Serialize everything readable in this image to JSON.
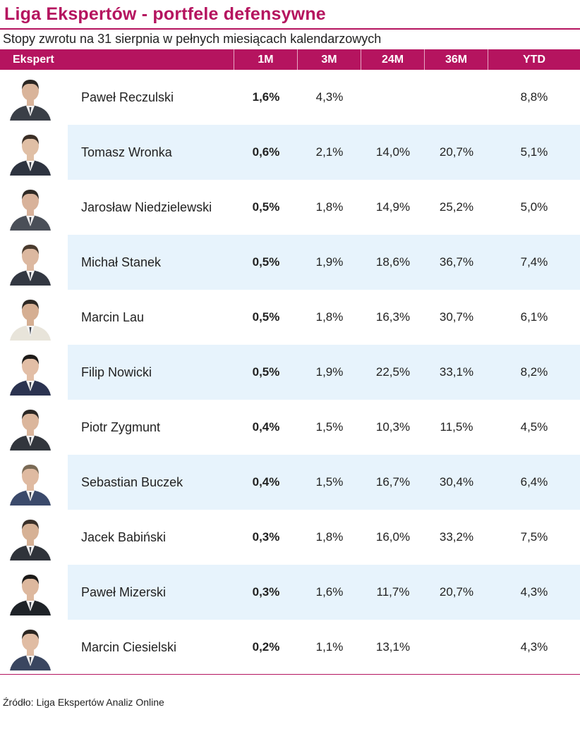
{
  "title": "Liga Ekspertów - portfele defensywne",
  "subtitle": "Stopy zwrotu na 31 sierpnia w pełnych miesiącach kalendarzowych",
  "source": "Źródło: Liga Ekspertów Analiz Online",
  "colors": {
    "accent": "#b5145f",
    "row_band": "#e7f3fc"
  },
  "chart_data": {
    "type": "table",
    "columns": [
      "Ekspert",
      "1M",
      "3M",
      "24M",
      "36M",
      "YTD"
    ],
    "rows": [
      {
        "expert": "Paweł Reczulski",
        "m1": "1,6%",
        "m3": "4,3%",
        "m24": "",
        "m36": "",
        "ytd": "8,8%"
      },
      {
        "expert": "Tomasz Wronka",
        "m1": "0,6%",
        "m3": "2,1%",
        "m24": "14,0%",
        "m36": "20,7%",
        "ytd": "5,1%"
      },
      {
        "expert": "Jarosław Niedzielewski",
        "m1": "0,5%",
        "m3": "1,8%",
        "m24": "14,9%",
        "m36": "25,2%",
        "ytd": "5,0%"
      },
      {
        "expert": "Michał Stanek",
        "m1": "0,5%",
        "m3": "1,9%",
        "m24": "18,6%",
        "m36": "36,7%",
        "ytd": "7,4%"
      },
      {
        "expert": "Marcin Lau",
        "m1": "0,5%",
        "m3": "1,8%",
        "m24": "16,3%",
        "m36": "30,7%",
        "ytd": "6,1%"
      },
      {
        "expert": "Filip Nowicki",
        "m1": "0,5%",
        "m3": "1,9%",
        "m24": "22,5%",
        "m36": "33,1%",
        "ytd": "8,2%"
      },
      {
        "expert": "Piotr Zygmunt",
        "m1": "0,4%",
        "m3": "1,5%",
        "m24": "10,3%",
        "m36": "11,5%",
        "ytd": "4,5%"
      },
      {
        "expert": "Sebastian Buczek",
        "m1": "0,4%",
        "m3": "1,5%",
        "m24": "16,7%",
        "m36": "30,4%",
        "ytd": "6,4%"
      },
      {
        "expert": "Jacek Babiński",
        "m1": "0,3%",
        "m3": "1,8%",
        "m24": "16,0%",
        "m36": "33,2%",
        "ytd": "7,5%"
      },
      {
        "expert": "Paweł Mizerski",
        "m1": "0,3%",
        "m3": "1,6%",
        "m24": "11,7%",
        "m36": "20,7%",
        "ytd": "4,3%"
      },
      {
        "expert": "Marcin Ciesielski",
        "m1": "0,2%",
        "m3": "1,1%",
        "m24": "13,1%",
        "m36": "",
        "ytd": "4,3%"
      }
    ]
  }
}
